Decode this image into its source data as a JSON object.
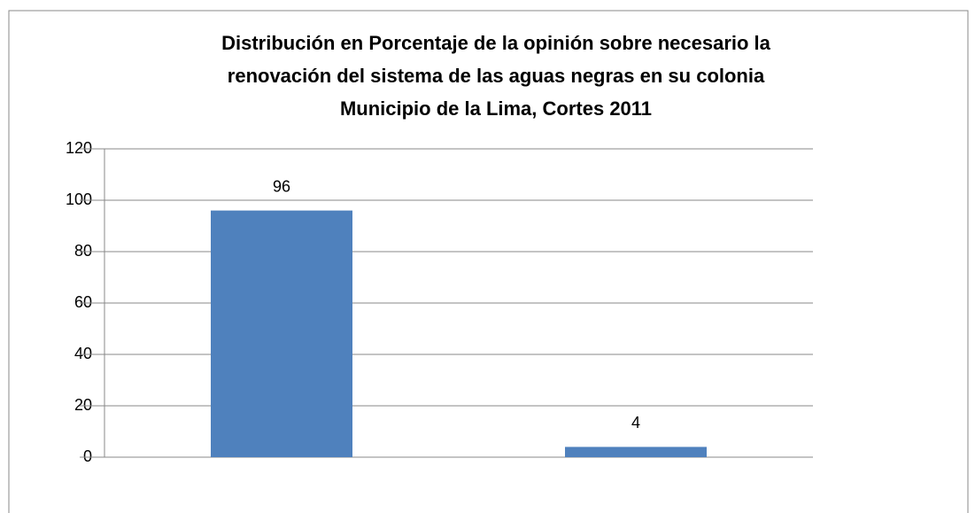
{
  "chart_data": {
    "type": "bar",
    "title": [
      "Distribución  en Porcentaje de la opinión sobre necesario la",
      "renovación del sistema de las aguas negras en su colonia",
      "Municipio de la Lima, Cortes 2011"
    ],
    "categories": [
      null,
      null
    ],
    "values": [
      96,
      4
    ],
    "color": "#4f81bd",
    "ylim": [
      0,
      120
    ],
    "yticks": [
      0,
      20,
      40,
      60,
      80,
      100,
      120
    ],
    "grid": true
  }
}
